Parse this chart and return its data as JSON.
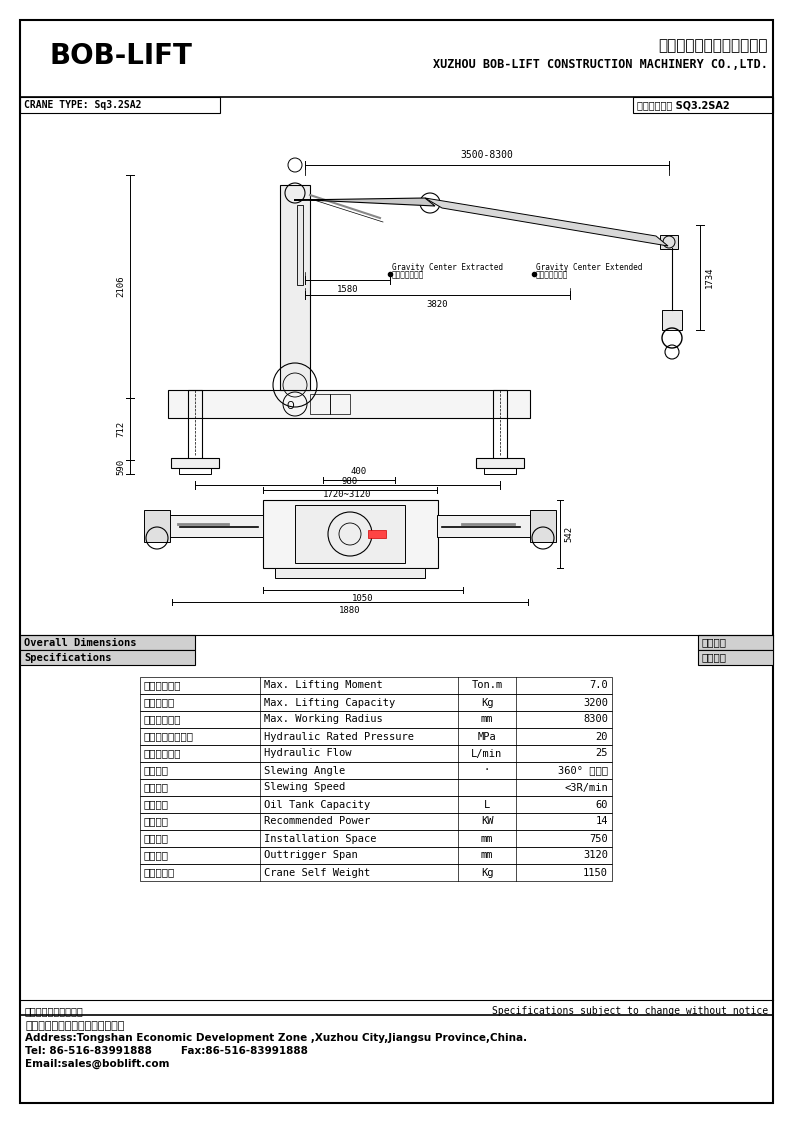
{
  "page_bg": "#ffffff",
  "title_boblift": "BOB-LIFT",
  "title_chinese": "徐州巴布工程机械有限公司",
  "title_english": "XUZHOU BOB-LIFT CONSTRUCTION MACHINERY CO.,LTD.",
  "crane_type_label": "CRANE TYPE: Sq3.2SA2",
  "crane_model_label": "起重机型号： SQ3.2SA2",
  "overall_dim_en": "Overall Dimensions",
  "overall_dim_cn": "外形尺尸",
  "spec_en": "Specifications",
  "spec_cn": "技术参数",
  "notice_cn": "技术更改恕不另行通知",
  "notice_en": "Specifications subject to change without notice",
  "address_cn": "地址：江苏省徐州市铜山庐开发区",
  "address_en": "Address:Tongshan Economic Development Zone ,Xuzhou City,Jiangsu Province,China.",
  "tel": "Tel: 86-516-83991888",
  "fax": "Fax:86-516-83991888",
  "email": "Email:sales@boblift.com",
  "specs": [
    [
      "最大起重力矩",
      "Max. Lifting Moment",
      "Ton.m",
      "7.0"
    ],
    [
      "最大起重量",
      "Max. Lifting Capacity",
      "Kg",
      "3200"
    ],
    [
      "最大工作半径",
      "Max. Working Radius",
      "mm",
      "8300"
    ],
    [
      "液压系统额定压力",
      "Hydraulic Rated Pressure",
      "MPa",
      "20"
    ],
    [
      "液压系统流量",
      "Hydraulic Flow",
      "L/min",
      "25"
    ],
    [
      "回转角度",
      "Slewing Angle",
      "·",
      "360° 全回转"
    ],
    [
      "回转速度",
      "Slewing Speed",
      "",
      "<3R/min"
    ],
    [
      "油筒容积",
      "Oil Tank Capacity",
      "L",
      "60"
    ],
    [
      "推荐功率",
      "Recommended Power",
      "KW",
      "14"
    ],
    [
      "安装空间",
      "Installation Space",
      "mm",
      "750"
    ],
    [
      "支腿距距",
      "Outtrigger Span",
      "mm",
      "3120"
    ],
    [
      "起重机自重",
      "Crane Self Weight",
      "Kg",
      "1150"
    ]
  ],
  "dim_top_span": "3500-8300",
  "dim_2106": "2106",
  "dim_712": "712",
  "dim_590": "590",
  "dim_1580": "1580",
  "dim_3820": "3820",
  "dim_1720_3120": "1720~3120",
  "dim_1734": "1734",
  "dim_980": "980",
  "dim_400": "400",
  "dim_1050": "1050",
  "dim_1880": "1880",
  "dim_542": "542",
  "gravity_retracted_en": "Gravity Center Extracted",
  "gravity_retracted_cn": "全缩回重心位置",
  "gravity_extended_en": "Gravity Center Extended",
  "gravity_extended_cn": "全伸出重心位置"
}
